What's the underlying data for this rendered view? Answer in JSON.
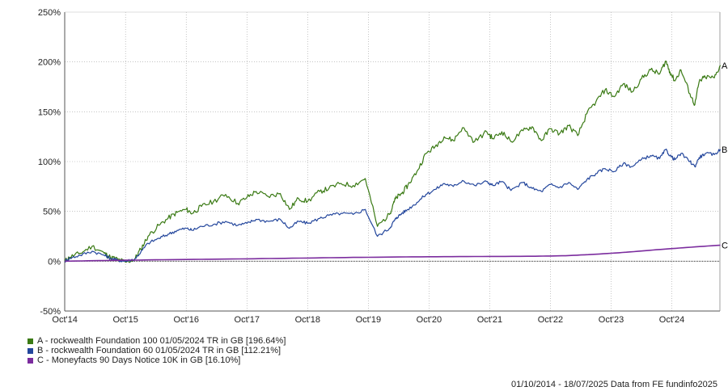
{
  "chart_data": {
    "type": "line",
    "x_range": [
      "2014-10-01",
      "2025-07-18"
    ],
    "ylim": [
      -50,
      250
    ],
    "yticks": [
      -50,
      0,
      50,
      100,
      150,
      200,
      250
    ],
    "ytick_labels": [
      "-50%",
      "0%",
      "50%",
      "100%",
      "150%",
      "200%",
      "250%"
    ],
    "xtick_labels": [
      "Oct'14",
      "Oct'15",
      "Oct'16",
      "Oct'17",
      "Oct'18",
      "Oct'19",
      "Oct'20",
      "Oct'21",
      "Oct'22",
      "Oct'23",
      "Oct'24"
    ],
    "xtick_years": [
      2014,
      2015,
      2016,
      2017,
      2018,
      2019,
      2020,
      2021,
      2022,
      2023,
      2024
    ],
    "grid": true,
    "legend_position": "bottom-left",
    "series": [
      {
        "name": "A - rockwealth Foundation 100 01/05/2024 TR in GB [196.64%]",
        "end_label": "A",
        "color": "#3a7a14",
        "x": [
          2014.75,
          2014.83,
          2015.0,
          2015.2,
          2015.4,
          2015.5,
          2015.62,
          2015.75,
          2015.9,
          2016.0,
          2016.12,
          2016.3,
          2016.45,
          2016.6,
          2016.75,
          2016.85,
          2017.0,
          2017.2,
          2017.4,
          2017.6,
          2017.75,
          2017.9,
          2018.1,
          2018.3,
          2018.45,
          2018.6,
          2018.75,
          2018.95,
          2019.1,
          2019.3,
          2019.5,
          2019.7,
          2019.9,
          2020.1,
          2020.17,
          2020.22,
          2020.3,
          2020.4,
          2020.55,
          2020.7,
          2020.85,
          2021.0,
          2021.15,
          2021.3,
          2021.5,
          2021.7,
          2021.8,
          2021.95,
          2022.1,
          2022.3,
          2022.45,
          2022.6,
          2022.75,
          2022.9,
          2023.05,
          2023.2,
          2023.35,
          2023.5,
          2023.65,
          2023.8,
          2023.95,
          2024.1,
          2024.25,
          2024.4,
          2024.55,
          2024.65,
          2024.72,
          2024.8,
          2024.9,
          2025.05,
          2025.13,
          2025.2,
          2025.3,
          2025.45,
          2025.55
        ],
        "values": [
          0,
          4,
          8,
          15,
          8,
          4,
          2,
          -1,
          2,
          12,
          25,
          36,
          43,
          49,
          52,
          48,
          55,
          60,
          67,
          58,
          64,
          70,
          65,
          68,
          52,
          63,
          60,
          70,
          73,
          78,
          76,
          83,
          35,
          47,
          60,
          64,
          68,
          76,
          90,
          108,
          115,
          125,
          121,
          134,
          120,
          130,
          123,
          130,
          120,
          131,
          135,
          121,
          133,
          128,
          136,
          126,
          148,
          160,
          172,
          165,
          178,
          170,
          183,
          192,
          188,
          201,
          190,
          181,
          192,
          168,
          157,
          180,
          185,
          184,
          196.64
        ]
      },
      {
        "name": "B - rockwealth Foundation 60 01/05/2024 TR in GB [112.21%]",
        "end_label": "B",
        "color": "#23469c",
        "x": [
          2014.75,
          2014.83,
          2015.0,
          2015.2,
          2015.4,
          2015.5,
          2015.62,
          2015.75,
          2015.9,
          2016.0,
          2016.12,
          2016.3,
          2016.45,
          2016.6,
          2016.75,
          2016.85,
          2017.0,
          2017.2,
          2017.4,
          2017.6,
          2017.75,
          2017.9,
          2018.1,
          2018.3,
          2018.45,
          2018.6,
          2018.75,
          2018.95,
          2019.1,
          2019.3,
          2019.5,
          2019.7,
          2019.9,
          2020.1,
          2020.17,
          2020.22,
          2020.3,
          2020.4,
          2020.55,
          2020.7,
          2020.85,
          2021.0,
          2021.15,
          2021.3,
          2021.5,
          2021.7,
          2021.8,
          2021.95,
          2022.1,
          2022.3,
          2022.45,
          2022.6,
          2022.75,
          2022.9,
          2023.05,
          2023.2,
          2023.35,
          2023.5,
          2023.65,
          2023.8,
          2023.95,
          2024.1,
          2024.25,
          2024.4,
          2024.55,
          2024.65,
          2024.72,
          2024.8,
          2024.9,
          2025.05,
          2025.13,
          2025.2,
          2025.3,
          2025.45,
          2025.55
        ],
        "values": [
          0,
          3,
          6,
          10,
          6,
          3,
          1,
          0,
          2,
          9,
          18,
          23,
          27,
          31,
          33,
          31,
          35,
          37,
          40,
          36,
          38,
          42,
          40,
          42,
          33,
          40,
          38,
          43,
          46,
          48,
          47,
          52,
          25,
          33,
          40,
          44,
          48,
          52,
          59,
          67,
          72,
          78,
          75,
          81,
          76,
          80,
          76,
          80,
          71,
          79,
          73,
          70,
          77,
          74,
          79,
          72,
          82,
          88,
          93,
          90,
          98,
          95,
          102,
          106,
          103,
          112,
          106,
          102,
          108,
          100,
          95,
          104,
          108,
          107,
          112.21
        ]
      },
      {
        "name": "C - Moneyfacts 90 Days Notice 10K in GB [16.10%]",
        "end_label": "C",
        "color": "#7b2c9e",
        "x": [
          2014.75,
          2015.5,
          2016.5,
          2017.5,
          2018.5,
          2019.5,
          2020.5,
          2021.5,
          2022.5,
          2023.0,
          2023.5,
          2024.0,
          2024.5,
          2025.0,
          2025.55
        ],
        "values": [
          0,
          0.8,
          1.6,
          2.2,
          3.0,
          3.8,
          4.4,
          4.7,
          5.0,
          5.5,
          7.0,
          9.0,
          11.5,
          13.8,
          16.1
        ]
      }
    ]
  },
  "footer_text": "01/10/2014 - 18/07/2025 Data from FE fundinfo2025"
}
